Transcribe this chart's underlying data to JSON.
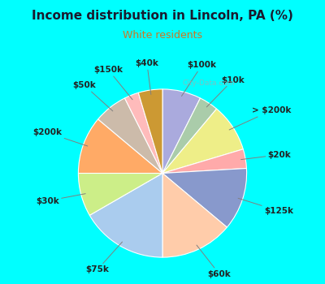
{
  "title": "Income distribution in Lincoln, PA (%)",
  "subtitle": "White residents",
  "title_color": "#1a1a2e",
  "subtitle_color": "#cc7722",
  "background_color": "#00ffff",
  "chart_bg_color_top": "#f0f8f0",
  "chart_bg_color_bottom": "#d0eedd",
  "watermark": "City-Data.com",
  "labels": [
    "$100k",
    "$10k",
    "> $200k",
    "$20k",
    "$125k",
    "$60k",
    "$75k",
    "$30k",
    "$200k",
    "$50k",
    "$150k",
    "$40k"
  ],
  "values": [
    8,
    4,
    10,
    4,
    13,
    15,
    18,
    9,
    12,
    7,
    3,
    5
  ],
  "colors": [
    "#aaaadd",
    "#aaccaa",
    "#eeee88",
    "#ffaaaa",
    "#8899cc",
    "#ffccaa",
    "#aaccee",
    "#ccee88",
    "#ffaa66",
    "#ccbbaa",
    "#ffbbbb",
    "#cc9933"
  ],
  "start_angle": 90,
  "label_font_size": 7.5,
  "title_font_size": 11,
  "subtitle_font_size": 9
}
